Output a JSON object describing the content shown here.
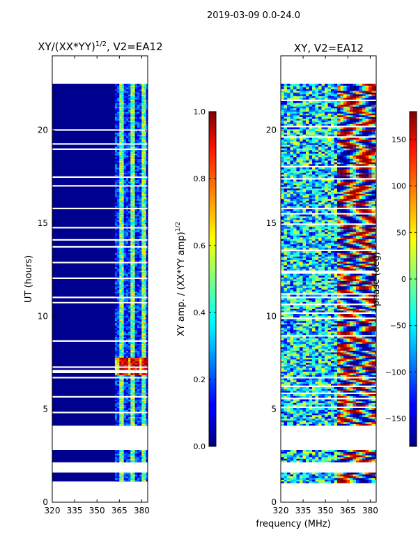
{
  "suptitle": "2019-03-09 0.0-24.0",
  "chart_data": [
    {
      "type": "heatmap",
      "title": "XY/(XX*YY)^{1/2}, V2=EA12",
      "title_main": "XY/(XX*YY)",
      "title_exp": "1/2",
      "title_suffix": ", V2=EA12",
      "xlabel": "",
      "ylabel": "UT (hours)",
      "xlim": [
        320,
        384
      ],
      "ylim": [
        0,
        24
      ],
      "xticks": [
        320,
        335,
        350,
        365,
        380
      ],
      "yticks": [
        0,
        5,
        10,
        15,
        20
      ],
      "data_coverage_hours": [
        [
          1.0,
          1.6
        ],
        [
          2.2,
          2.8
        ],
        [
          4.1,
          22.5
        ]
      ],
      "rfi_channel_start_mhz": 362,
      "strong_feature": {
        "ut_range": [
          6.8,
          7.8
        ],
        "freq_range": [
          362,
          382
        ],
        "level": "high (~0.8-1.0)"
      },
      "background_level": "low (~0.0-0.05)",
      "colorbar": {
        "label": "XY amp. / (XX*YY amp)^{1/2}",
        "label_main": "XY amp. / (XX*YY amp)",
        "label_exp": "1/2",
        "range": [
          0.0,
          1.0
        ],
        "ticks": [
          "0.0",
          "0.2",
          "0.4",
          "0.6",
          "0.8",
          "1.0"
        ]
      }
    },
    {
      "type": "heatmap",
      "title": "XY, V2=EA12",
      "xlabel": "frequency (MHz)",
      "ylabel": "",
      "xlim": [
        320,
        384
      ],
      "ylim": [
        0,
        24
      ],
      "xticks": [
        320,
        335,
        350,
        365,
        380
      ],
      "yticks": [
        0,
        5,
        10,
        15,
        20
      ],
      "data_coverage_hours": [
        [
          1.0,
          1.6
        ],
        [
          2.2,
          2.8
        ],
        [
          4.1,
          22.5
        ]
      ],
      "colorbar": {
        "label": "phase (deg)",
        "range": [
          -180,
          180
        ],
        "ticks": [
          "−150",
          "−100",
          "−50",
          "0",
          "50",
          "100",
          "150"
        ]
      }
    }
  ]
}
